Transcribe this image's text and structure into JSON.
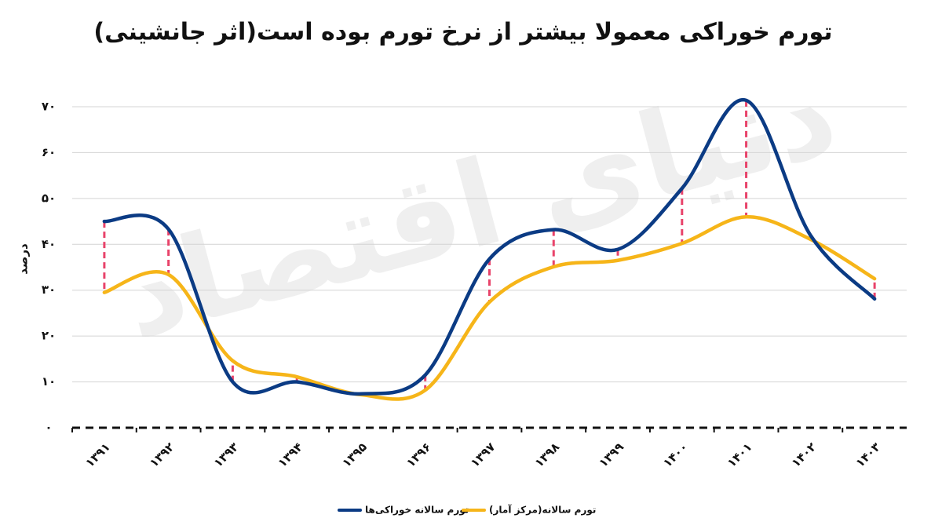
{
  "chart_data": {
    "type": "line",
    "title": "تورم خوراکی معمولا بیشتر از نرخ تورم بوده است(اثر جانشینی)",
    "watermark": "دنیای اقتصاد",
    "y_label": "درصد",
    "categories": [
      "۱۳۹۱",
      "۱۳۹۲",
      "۱۳۹۳",
      "۱۳۹۴",
      "۱۳۹۵",
      "۱۳۹۶",
      "۱۳۹۷",
      "۱۳۹۸",
      "۱۳۹۹",
      "۱۴۰۰",
      "۱۴۰۱",
      "۱۴۰۲",
      "۱۴۰۳"
    ],
    "series": [
      {
        "name": "تورم سالانه خوراکی‌ها",
        "color": "#0b3b84",
        "values": [
          45,
          43.3,
          10,
          10,
          7.4,
          11.5,
          36.8,
          43.2,
          38.9,
          52.2,
          71.4,
          42,
          28.1
        ]
      },
      {
        "name": "تورم سالانه(مرکز آمار)",
        "color": "#f6b519",
        "values": [
          29.5,
          33.4,
          14.6,
          11.1,
          7.2,
          8.2,
          27.4,
          35.1,
          36.5,
          40.2,
          46,
          41.1,
          32.5
        ]
      }
    ],
    "gap_color": "#e8436a",
    "ylim": [
      0,
      70
    ],
    "yticks": [
      {
        "value": 0,
        "label": "۰"
      },
      {
        "value": 10,
        "label": "۱۰"
      },
      {
        "value": 20,
        "label": "۲۰"
      },
      {
        "value": 30,
        "label": "۳۰"
      },
      {
        "value": 40,
        "label": "۴۰"
      },
      {
        "value": 50,
        "label": "۵۰"
      },
      {
        "value": 60,
        "label": "۶۰"
      },
      {
        "value": 70,
        "label": "۷۰"
      }
    ],
    "grid": true
  }
}
